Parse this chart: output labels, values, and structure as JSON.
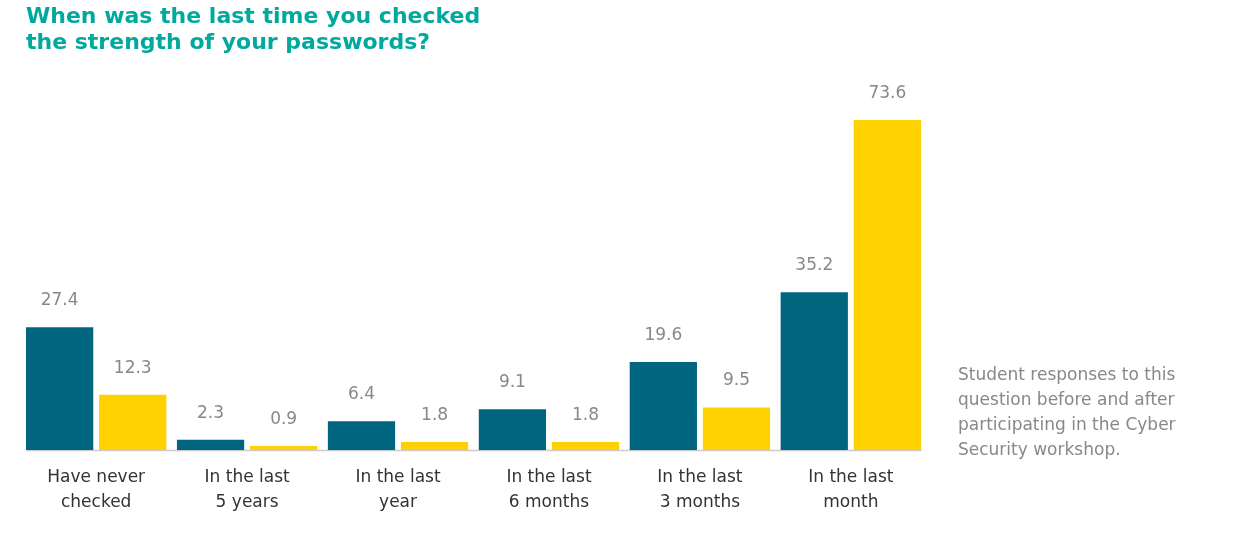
{
  "chart_data": {
    "type": "bar",
    "title": "When was the last time you checked the strength of your passwords?",
    "categories": [
      "Have never checked",
      "In the last 5 years",
      "In the last year",
      "In the last 6 months",
      "In the last 3 months",
      "In the last month"
    ],
    "series": [
      {
        "color": "#006680",
        "values": [
          27.4,
          2.3,
          6.4,
          9.1,
          19.6,
          35.2
        ]
      },
      {
        "color": "#ffd100",
        "values": [
          12.3,
          0.9,
          1.8,
          1.8,
          9.5,
          73.6
        ]
      }
    ],
    "data_labels": true,
    "grid": false,
    "legend": false,
    "annotations": [
      "Student responses to this question before and after participating in the Cyber Security workshop."
    ]
  }
}
